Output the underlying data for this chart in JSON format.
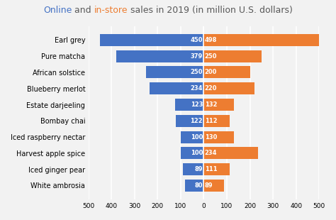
{
  "categories": [
    "White ambrosia",
    "Iced ginger pear",
    "Harvest apple spice",
    "Iced raspberry nectar",
    "Bombay chai",
    "Estate darjeeling",
    "Blueberry merlot",
    "African solstice",
    "Pure matcha",
    "Earl grey"
  ],
  "online": [
    80,
    89,
    100,
    100,
    122,
    123,
    234,
    250,
    379,
    450
  ],
  "instore": [
    89,
    111,
    234,
    130,
    112,
    132,
    220,
    200,
    250,
    498
  ],
  "online_color": "#4472C4",
  "instore_color": "#ED7D31",
  "online_color_title": "#4472C4",
  "instore_color_title": "#ED7D31",
  "text_color_title": "#595959",
  "xlim": [
    -500,
    500
  ],
  "xticks": [
    -500,
    -400,
    -300,
    -200,
    -100,
    0,
    100,
    200,
    300,
    400,
    500
  ],
  "xtick_labels": [
    "500",
    "400",
    "300",
    "200",
    "100",
    "0",
    "100",
    "200",
    "300",
    "400",
    "500"
  ],
  "bar_height": 0.75,
  "label_fontsize": 6.0,
  "category_fontsize": 7.0,
  "title_fontsize": 9.0,
  "bg_color": "#F2F2F2",
  "plot_bg_color": "#F2F2F2",
  "grid_color": "#FFFFFF"
}
